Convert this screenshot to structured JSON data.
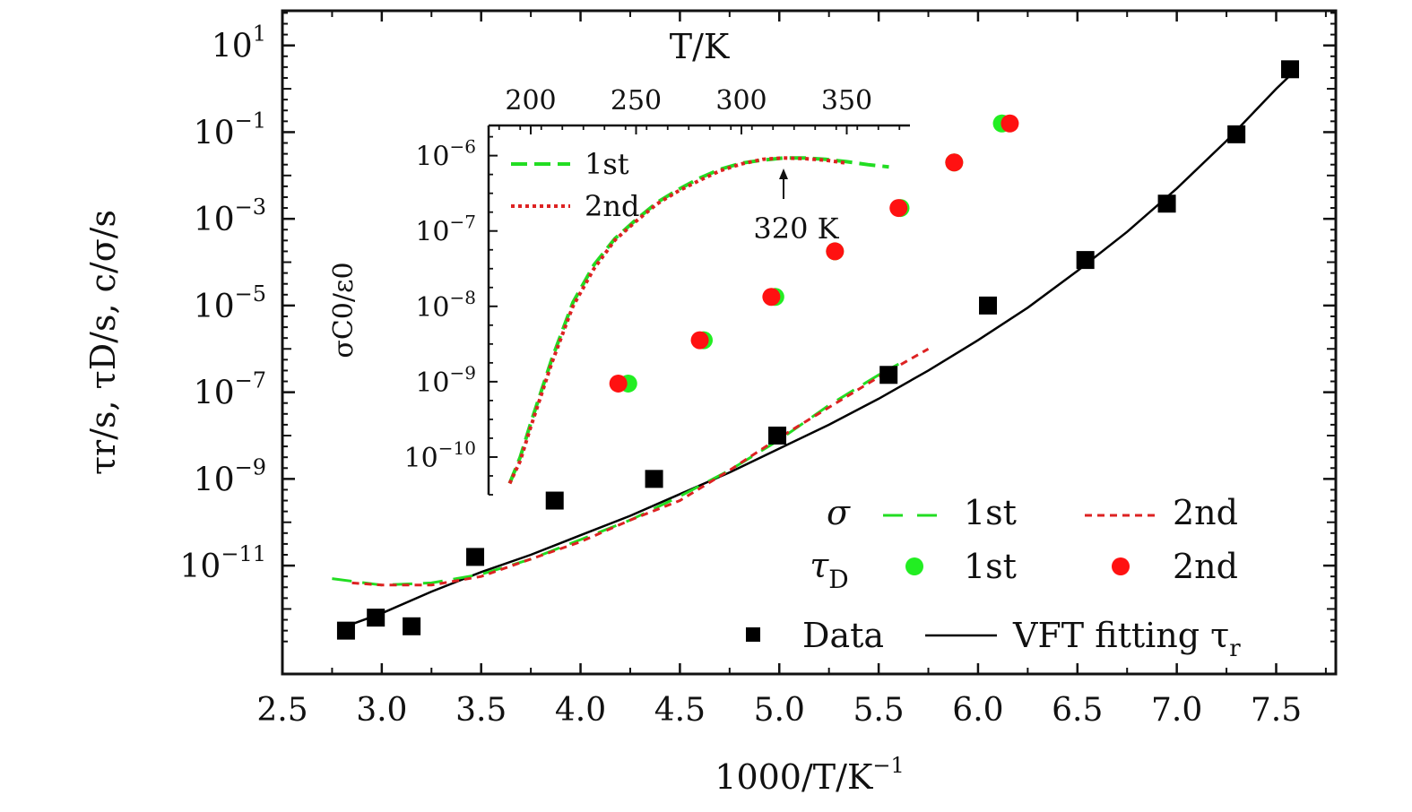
{
  "chart_data": [
    {
      "type": "scatter",
      "xlabel": "1000/T/K",
      "xlabel_exponent": "−1",
      "ylabel": "τr/s, τD/s, c/σ/s",
      "y_scale": "log",
      "xlim": [
        2.5,
        7.8
      ],
      "ylim_log10": [
        -13.5,
        1.8
      ],
      "x_ticks": [
        "2.5",
        "3.0",
        "3.5",
        "4.0",
        "4.5",
        "5.0",
        "5.5",
        "6.0",
        "6.5",
        "7.0",
        "7.5"
      ],
      "y_ticks": [
        {
          "base": "10",
          "exp": "1"
        },
        {
          "base": "10",
          "exp": "−1"
        },
        {
          "base": "10",
          "exp": "−3"
        },
        {
          "base": "10",
          "exp": "−5"
        },
        {
          "base": "10",
          "exp": "−7"
        },
        {
          "base": "10",
          "exp": "−9"
        },
        {
          "base": "10",
          "exp": "−11"
        }
      ],
      "series": [
        {
          "name": "Data",
          "kind": "square",
          "color": "#000000",
          "x": [
            2.82,
            2.97,
            3.15,
            3.47,
            3.87,
            4.37,
            4.99,
            5.55,
            6.05,
            6.54,
            6.95,
            7.3,
            7.57
          ],
          "log10_y": [
            -12.5,
            -12.2,
            -12.4,
            -10.8,
            -9.5,
            -9.0,
            -8.0,
            -6.6,
            -5.0,
            -3.95,
            -2.65,
            -1.05,
            0.45
          ]
        },
        {
          "name": "VFT fitting τr",
          "kind": "line",
          "color": "#000000",
          "x": [
            2.82,
            3.0,
            3.25,
            3.5,
            3.75,
            4.0,
            4.25,
            4.5,
            4.75,
            5.0,
            5.25,
            5.5,
            5.75,
            6.0,
            6.25,
            6.5,
            6.75,
            7.0,
            7.25,
            7.5,
            7.58
          ],
          "log10_y": [
            -12.4,
            -12.1,
            -11.6,
            -11.15,
            -10.75,
            -10.3,
            -9.85,
            -9.35,
            -8.85,
            -8.3,
            -7.75,
            -7.15,
            -6.5,
            -5.8,
            -5.05,
            -4.2,
            -3.3,
            -2.3,
            -1.2,
            0.0,
            0.35
          ]
        },
        {
          "name": "σ 1st",
          "kind": "dashed-line",
          "color": "#22dd22",
          "x": [
            2.75,
            3.0,
            3.25,
            3.5,
            3.75,
            4.0,
            4.25,
            4.5,
            4.75,
            5.0,
            5.25,
            5.5,
            5.6
          ],
          "log10_y": [
            -11.3,
            -11.45,
            -11.4,
            -11.2,
            -10.85,
            -10.4,
            -9.95,
            -9.4,
            -8.8,
            -8.1,
            -7.3,
            -6.6,
            -6.35
          ]
        },
        {
          "name": "σ 2nd",
          "kind": "dotted-line",
          "color": "#dd2222",
          "x": [
            2.85,
            3.0,
            3.25,
            3.5,
            3.75,
            4.0,
            4.25,
            4.5,
            4.75,
            5.0,
            5.25,
            5.5,
            5.75
          ],
          "log10_y": [
            -11.4,
            -11.45,
            -11.45,
            -11.25,
            -10.85,
            -10.45,
            -9.95,
            -9.5,
            -8.8,
            -8.05,
            -7.35,
            -6.65,
            -6.0
          ]
        },
        {
          "name": "τD 1st",
          "kind": "circle",
          "color": "#22ee22",
          "x": [
            4.24,
            4.62,
            4.98,
            5.28,
            5.61,
            5.88,
            6.12
          ],
          "log10_y": [
            -6.8,
            -5.8,
            -4.8,
            -3.75,
            -2.75,
            -1.7,
            -0.8
          ]
        },
        {
          "name": "τD 2nd",
          "kind": "circle",
          "color": "#ff1111",
          "x": [
            4.19,
            4.6,
            4.96,
            5.28,
            5.6,
            5.88,
            6.16
          ],
          "log10_y": [
            -6.8,
            -5.8,
            -4.8,
            -3.75,
            -2.75,
            -1.7,
            -0.8
          ]
        }
      ],
      "legend": {
        "placement": "bottom-right",
        "sigma_symbol": "σ",
        "tau_symbol": "τ",
        "tau_subscript": "D",
        "first": "1st",
        "second": "2nd",
        "data_label": "Data",
        "fit_label": "VFT fitting τ",
        "fit_subscript": "r"
      }
    },
    {
      "type": "line",
      "placement": "inset top-left",
      "xlabel": "T/K",
      "ylabel": "σC0/ε0",
      "y_scale": "log",
      "xlim": [
        180,
        380
      ],
      "ylim_log10": [
        -10.5,
        -5.6
      ],
      "x_ticks": [
        "200",
        "250",
        "300",
        "350"
      ],
      "y_ticks": [
        {
          "base": "10",
          "exp": "−6"
        },
        {
          "base": "10",
          "exp": "−7"
        },
        {
          "base": "10",
          "exp": "−8"
        },
        {
          "base": "10",
          "exp": "−9"
        },
        {
          "base": "10",
          "exp": "−10"
        }
      ],
      "series": [
        {
          "name": "1st",
          "kind": "dashed-line",
          "color": "#22dd22",
          "x": [
            190,
            195,
            200,
            210,
            220,
            230,
            240,
            250,
            260,
            270,
            280,
            290,
            300,
            310,
            320,
            330,
            340,
            350,
            360,
            370
          ],
          "log10_y": [
            -10.35,
            -10.0,
            -9.55,
            -8.7,
            -7.95,
            -7.45,
            -7.1,
            -6.85,
            -6.62,
            -6.45,
            -6.3,
            -6.18,
            -6.1,
            -6.06,
            -6.03,
            -6.03,
            -6.05,
            -6.08,
            -6.12,
            -6.15
          ]
        },
        {
          "name": "2nd",
          "kind": "dotted-line",
          "color": "#dd2222",
          "x": [
            190,
            195,
            200,
            210,
            220,
            230,
            240,
            250,
            260,
            270,
            280,
            290,
            300,
            310,
            320,
            330,
            340,
            350
          ],
          "log10_y": [
            -10.35,
            -10.05,
            -9.6,
            -8.75,
            -8.0,
            -7.5,
            -7.12,
            -6.87,
            -6.64,
            -6.47,
            -6.33,
            -6.2,
            -6.11,
            -6.05,
            -6.03,
            -6.04,
            -6.06,
            -6.1
          ]
        }
      ],
      "annotation": {
        "text": "320 K",
        "x": 320
      },
      "legend": {
        "placement": "top-left",
        "first": "1st",
        "second": "2nd"
      }
    }
  ]
}
